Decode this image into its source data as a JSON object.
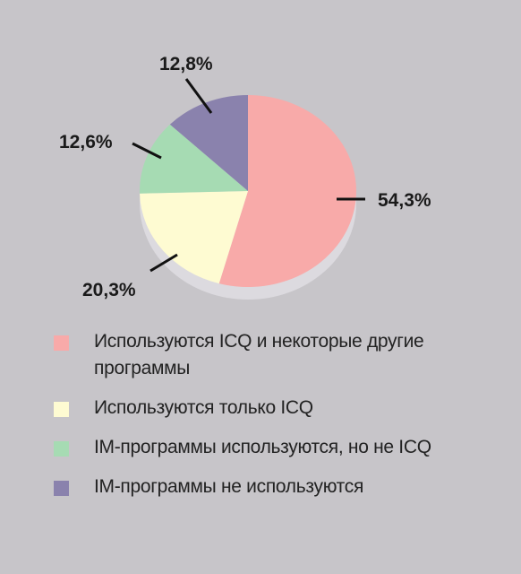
{
  "chart_data": {
    "type": "pie",
    "title": "",
    "slices": [
      {
        "name": "Используются ICQ и некоторые другие программы",
        "value": 54.3,
        "label": "54,3%",
        "color": "#f8aaa9"
      },
      {
        "name": "Используются только ICQ",
        "value": 20.3,
        "label": "20,3%",
        "color": "#fefbd2"
      },
      {
        "name": "IM-программы используются, но не ICQ",
        "value": 12.6,
        "label": "12,6%",
        "color": "#a6dbb3"
      },
      {
        "name": "IM-программы не используются",
        "value": 12.8,
        "label": "12,8%",
        "color": "#8a82ad"
      }
    ],
    "legend_placement": "bottom"
  },
  "legend": {
    "items": [
      {
        "label": "Используются ICQ и некоторые другие программы"
      },
      {
        "label": "Используются только ICQ"
      },
      {
        "label": "IM-программы используются, но не ICQ"
      },
      {
        "label": "IM-программы не используются"
      }
    ]
  }
}
